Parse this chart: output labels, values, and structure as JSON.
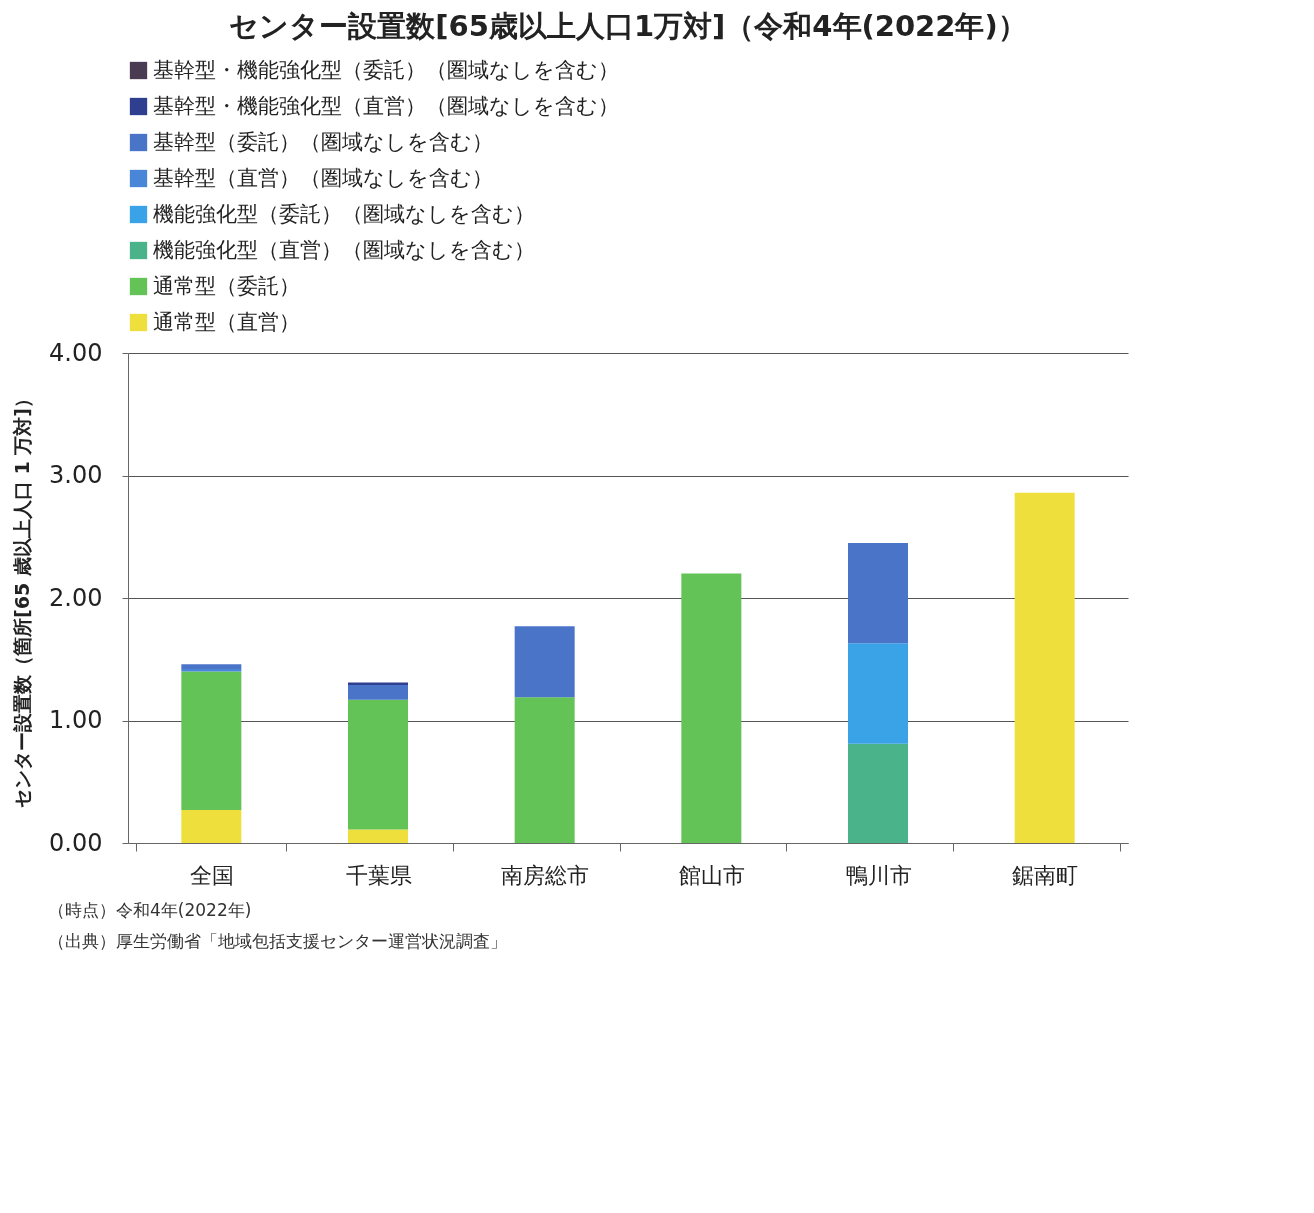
{
  "chart_data": {
    "type": "bar",
    "stacked": true,
    "title": "センター設置数[65歳以上人口1万対]（令和4年(2022年)）",
    "ylabel": "センター設置数（箇所[65 歳以上人口 1 万対]）",
    "categories": [
      "全国",
      "千葉県",
      "南房総市",
      "館山市",
      "鴨川市",
      "鋸南町"
    ],
    "series": [
      {
        "name": "通常型（直営）",
        "color": "#efdf3c",
        "values": [
          0.27,
          0.11,
          null,
          null,
          null,
          2.86
        ]
      },
      {
        "name": "通常型（委託）",
        "color": "#63c356",
        "values": [
          1.13,
          1.06,
          1.19,
          2.2,
          null,
          null
        ]
      },
      {
        "name": "機能強化型（直営）（圏域なしを含む）",
        "color": "#4bb38a",
        "values": [
          null,
          null,
          null,
          null,
          0.81,
          null
        ]
      },
      {
        "name": "機能強化型（委託）（圏域なしを含む）",
        "color": "#3aa3e8",
        "values": [
          null,
          null,
          null,
          null,
          0.82,
          null
        ]
      },
      {
        "name": "基幹型（直営）（圏域なしを含む）",
        "color": "#4a86d8",
        "values": [
          0.02,
          null,
          null,
          null,
          null,
          null
        ]
      },
      {
        "name": "基幹型（委託）（圏域なしを含む）",
        "color": "#4a74c8",
        "values": [
          0.04,
          0.12,
          0.58,
          null,
          0.82,
          null
        ]
      },
      {
        "name": "基幹型・機能強化型（直営）（圏域なしを含む）",
        "color": "#2f3f8f",
        "values": [
          null,
          0.02,
          null,
          null,
          null,
          null
        ]
      },
      {
        "name": "基幹型・機能強化型（委託）（圏域なしを含む）",
        "color": "#4a3a52",
        "values": [
          null,
          null,
          null,
          null,
          null,
          null
        ]
      }
    ],
    "ylim": [
      0,
      4
    ],
    "yticks": [
      {
        "value": 0,
        "label": "0.00"
      },
      {
        "value": 1,
        "label": "1.00"
      },
      {
        "value": 2,
        "label": "2.00"
      },
      {
        "value": 3,
        "label": "3.00"
      },
      {
        "value": 4,
        "label": "4.00"
      }
    ],
    "grid": "y",
    "legend": "top",
    "annotations": [
      "（時点）令和4年(2022年)",
      "（出典）厚生労働省「地域包括支援センター運営状況調査」"
    ]
  }
}
